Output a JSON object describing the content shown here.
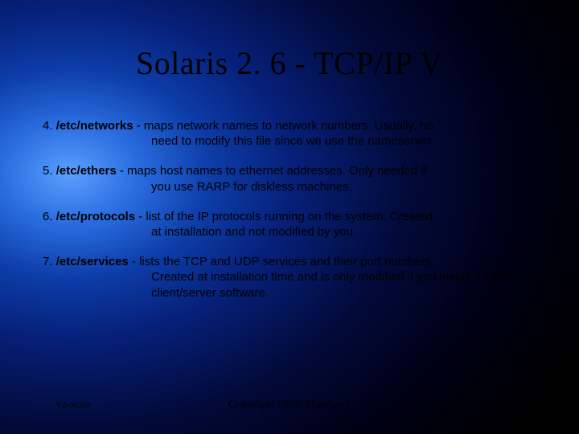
{
  "colors": {
    "title_color": "#000000",
    "body_text_color": "#000000",
    "footer_color": "#000000"
  },
  "typography": {
    "title_font": "Times New Roman",
    "title_size_pt": 30,
    "body_font": "Arial",
    "body_size_pt": 11,
    "footer_font": "Times New Roman",
    "footer_size_pt": 10
  },
  "background": {
    "type": "radial-gradient",
    "center": "12% 40%",
    "stops": [
      "#5aa0ff",
      "#2a6de0",
      "#0d3da8",
      "#061f78",
      "#020a3a",
      "#000014",
      "#000000"
    ]
  },
  "title": "Solaris 2. 6 - TCP/IP V",
  "items": [
    {
      "num": "4. ",
      "label": "/etc/networks",
      "desc_first": " - maps network names to network numbers. Usually, no",
      "desc_rest": "need to modify this file since we use the nameserver."
    },
    {
      "num": "5. ",
      "label": "/etc/ethers",
      "desc_first": " - maps host names to ethernet addresses. Only needed if",
      "desc_rest": "you use RARP for diskless machines."
    },
    {
      "num": "6. ",
      "label": "/etc/protocols",
      "desc_first": " - list of the IP protocols running on the system. Created",
      "desc_rest": "at installation and not modified by you."
    },
    {
      "num": "7. ",
      "label": "/etc/services",
      "desc_first": " - lists the TCP and UDP services and their port numbers.",
      "desc_rest": "Created at installation time and is only modified if you install 3 r party client/server software."
    }
  ],
  "footer": {
    "left": "va-scan",
    "center": "Copyright 1999, Marchany"
  }
}
